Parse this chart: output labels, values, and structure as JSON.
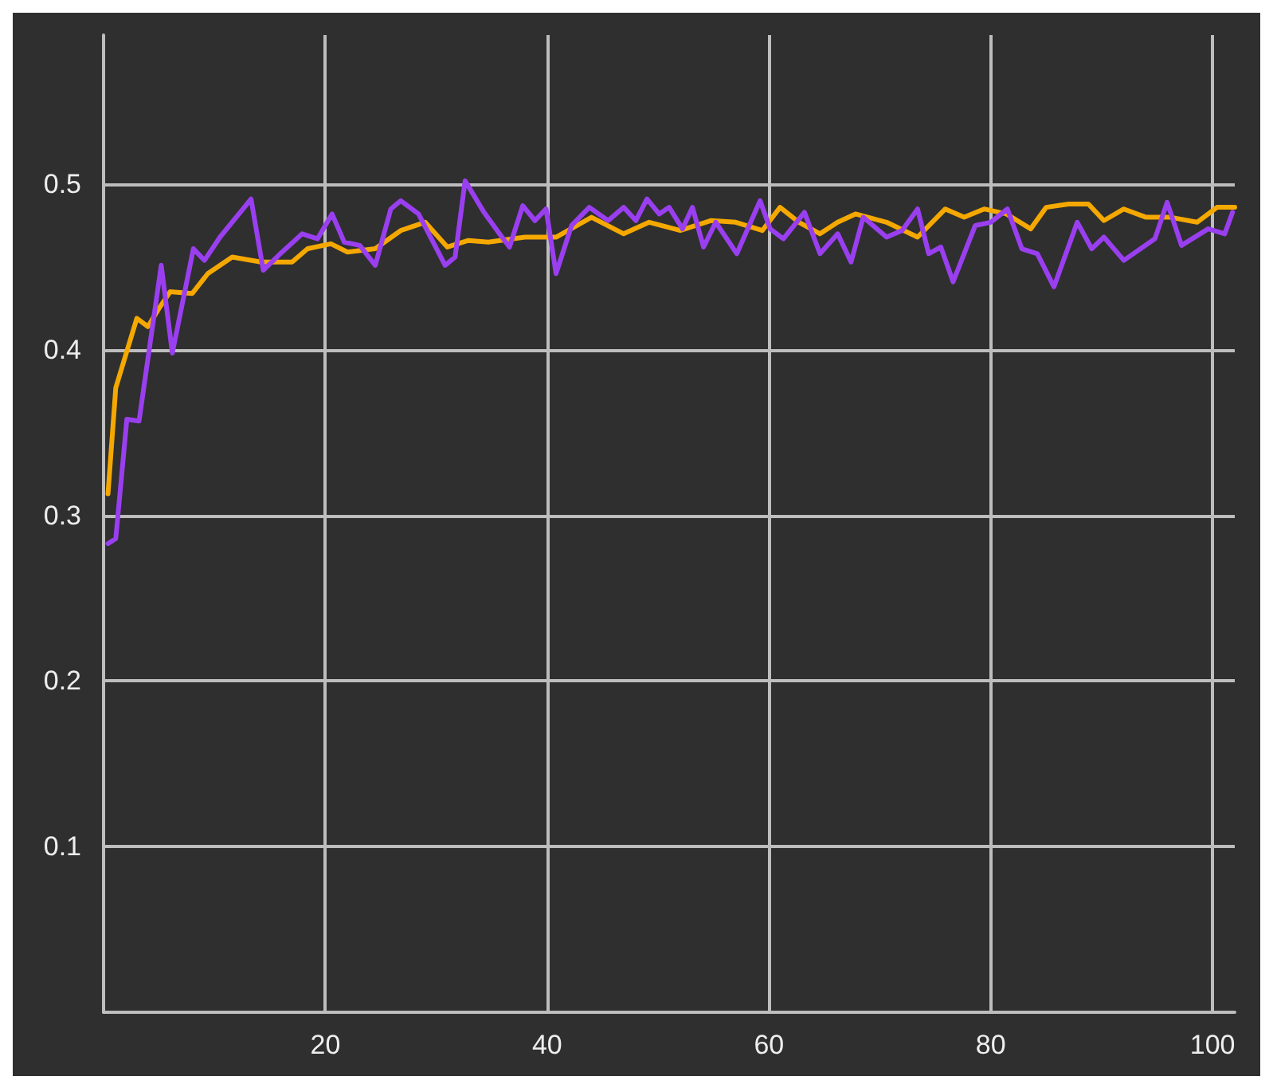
{
  "chart_data": {
    "type": "line",
    "xlim": [
      0,
      102
    ],
    "xticks": [
      20,
      40,
      60,
      80,
      100
    ],
    "ylim": [
      0,
      0.59
    ],
    "yticks": [
      0.1,
      0.2,
      0.3,
      0.4,
      0.5
    ],
    "grid": true,
    "series": [
      {
        "color": "#f5a800",
        "x": [
          0.4,
          1.1,
          3,
          4,
          5,
          6,
          8,
          9.4,
          11.6,
          14.2,
          17,
          18.4,
          20.5,
          22,
          24.5,
          26.8,
          29,
          31,
          32.9,
          34.7,
          38,
          40.8,
          44,
          46.9,
          49.2,
          52,
          54.8,
          57,
          59.4,
          61,
          62.7,
          64.6,
          66.2,
          67.8,
          70.6,
          73.4,
          75.9,
          77.6,
          79.4,
          81.4,
          83.6,
          85,
          87,
          88.8,
          90.2,
          92,
          94,
          96.2,
          98.6,
          100.4,
          102
        ],
        "values": [
          0.313,
          0.377,
          0.419,
          0.414,
          0.425,
          0.435,
          0.434,
          0.446,
          0.456,
          0.453,
          0.453,
          0.461,
          0.464,
          0.459,
          0.461,
          0.472,
          0.477,
          0.462,
          0.466,
          0.465,
          0.468,
          0.468,
          0.48,
          0.47,
          0.477,
          0.472,
          0.478,
          0.477,
          0.472,
          0.486,
          0.477,
          0.47,
          0.477,
          0.482,
          0.477,
          0.468,
          0.485,
          0.48,
          0.485,
          0.482,
          0.473,
          0.486,
          0.488,
          0.488,
          0.478,
          0.485,
          0.48,
          0.48,
          0.477,
          0.486,
          0.486
        ]
      },
      {
        "color": "#9a3ff0",
        "x": [
          0.4,
          1.1,
          2.1,
          3.2,
          5.2,
          6.2,
          8.1,
          9.1,
          10.5,
          13.3,
          14.4,
          16.1,
          17.9,
          19.3,
          20.6,
          21.7,
          23.1,
          24.5,
          25.9,
          26.8,
          28.4,
          30.8,
          31.7,
          32.6,
          34.3,
          35.7,
          36.6,
          37.8,
          38.9,
          39.9,
          40.8,
          42.2,
          43.8,
          45.5,
          46.9,
          48,
          49,
          50.1,
          51,
          52.2,
          53.1,
          54.1,
          55.2,
          57.1,
          59.2,
          60.1,
          61.3,
          63.2,
          64.6,
          66.2,
          67.4,
          68.5,
          70.6,
          72,
          73.4,
          74.4,
          75.5,
          76.6,
          78.6,
          80,
          81.5,
          82.8,
          84.2,
          85.7,
          87.8,
          89.1,
          90.2,
          92,
          94.8,
          95.9,
          97.2,
          99.6,
          101.1,
          101.8
        ],
        "values": [
          0.283,
          0.286,
          0.358,
          0.357,
          0.451,
          0.398,
          0.461,
          0.454,
          0.468,
          0.491,
          0.448,
          0.459,
          0.47,
          0.467,
          0.482,
          0.465,
          0.463,
          0.451,
          0.485,
          0.49,
          0.482,
          0.451,
          0.456,
          0.502,
          0.483,
          0.47,
          0.462,
          0.487,
          0.478,
          0.485,
          0.446,
          0.475,
          0.486,
          0.478,
          0.486,
          0.478,
          0.491,
          0.482,
          0.486,
          0.473,
          0.486,
          0.462,
          0.477,
          0.458,
          0.49,
          0.473,
          0.467,
          0.483,
          0.458,
          0.47,
          0.453,
          0.48,
          0.468,
          0.472,
          0.485,
          0.458,
          0.462,
          0.441,
          0.475,
          0.477,
          0.485,
          0.461,
          0.458,
          0.438,
          0.477,
          0.461,
          0.468,
          0.454,
          0.467,
          0.489,
          0.463,
          0.473,
          0.47,
          0.483
        ]
      }
    ]
  }
}
